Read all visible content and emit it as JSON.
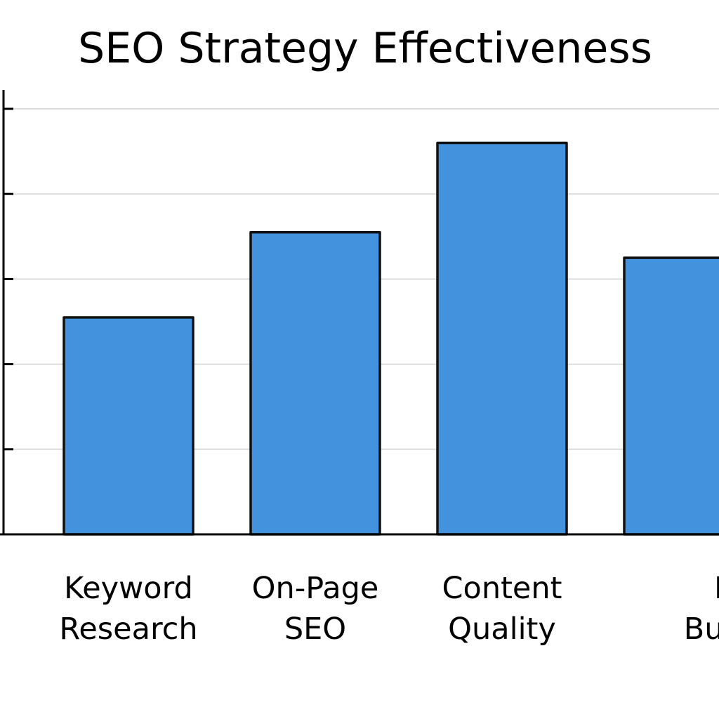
{
  "chart_data": {
    "type": "bar",
    "title": "SEO Strategy Effectiveness",
    "xlabel": "",
    "ylabel": "",
    "categories": [
      [
        "Keyword",
        "Research"
      ],
      [
        "On-Page",
        "SEO"
      ],
      [
        "Content",
        "Quality"
      ],
      [
        "Link",
        "Building"
      ]
    ],
    "values": [
      2.55,
      3.55,
      4.6,
      3.25
    ],
    "ylim": [
      0,
      5
    ],
    "y_gridlines": [
      1,
      2,
      3,
      4,
      5
    ],
    "grid": true,
    "legend": "none",
    "colors": {
      "bar_fill": "#4292DE",
      "bar_stroke": "#111111",
      "grid": "#D0D0D0",
      "axis": "#000000"
    }
  }
}
